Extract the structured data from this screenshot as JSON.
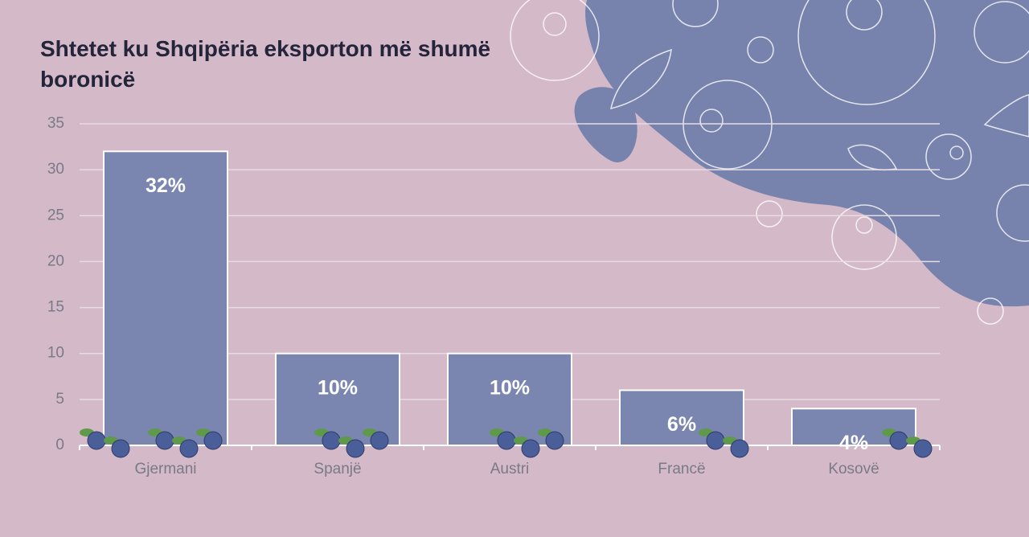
{
  "chart_data": {
    "type": "bar",
    "title": "Shtetet ku Shqipëria eksporton më shumë boronicë",
    "categories": [
      "Gjermani",
      "Spanjë",
      "Austri",
      "Francë",
      "Kosovë"
    ],
    "values": [
      32,
      10,
      10,
      6,
      4
    ],
    "value_labels": [
      "32%",
      "10%",
      "10%",
      "6%",
      "4%"
    ],
    "color": "#7a86b0",
    "ylim": [
      0,
      35
    ],
    "yticks": [
      0,
      5,
      10,
      15,
      20,
      25,
      30,
      35
    ],
    "grid": true
  }
}
